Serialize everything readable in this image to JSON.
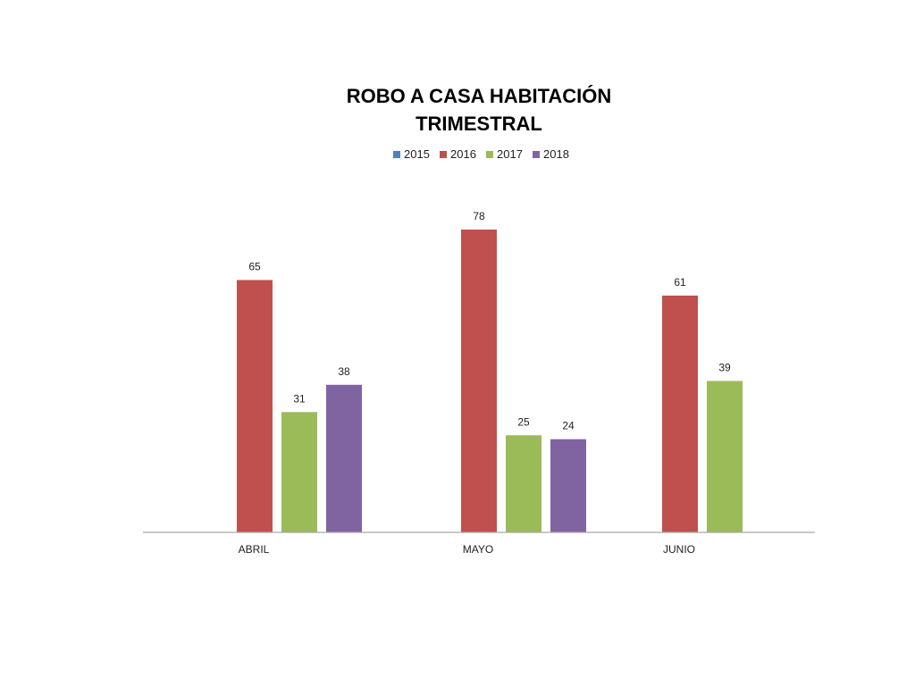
{
  "chart_data": {
    "type": "bar",
    "title_lines": [
      "ROBO A CASA HABITACIÓN",
      "TRIMESTRAL"
    ],
    "xlabel": "",
    "ylabel": "",
    "categories": [
      "ABRIL",
      "MAYO",
      "JUNIO"
    ],
    "series": [
      {
        "name": "2015",
        "color": "#4F81BD",
        "values": [
          null,
          null,
          null
        ]
      },
      {
        "name": "2016",
        "color": "#C0504D",
        "values": [
          65,
          78,
          61
        ]
      },
      {
        "name": "2017",
        "color": "#9BBB59",
        "values": [
          31,
          25,
          39
        ]
      },
      {
        "name": "2018",
        "color": "#8064A2",
        "values": [
          38,
          24,
          null
        ]
      }
    ],
    "ylim": [
      0,
      80
    ],
    "grid": false,
    "legend_position": "top",
    "data_labels": true
  }
}
